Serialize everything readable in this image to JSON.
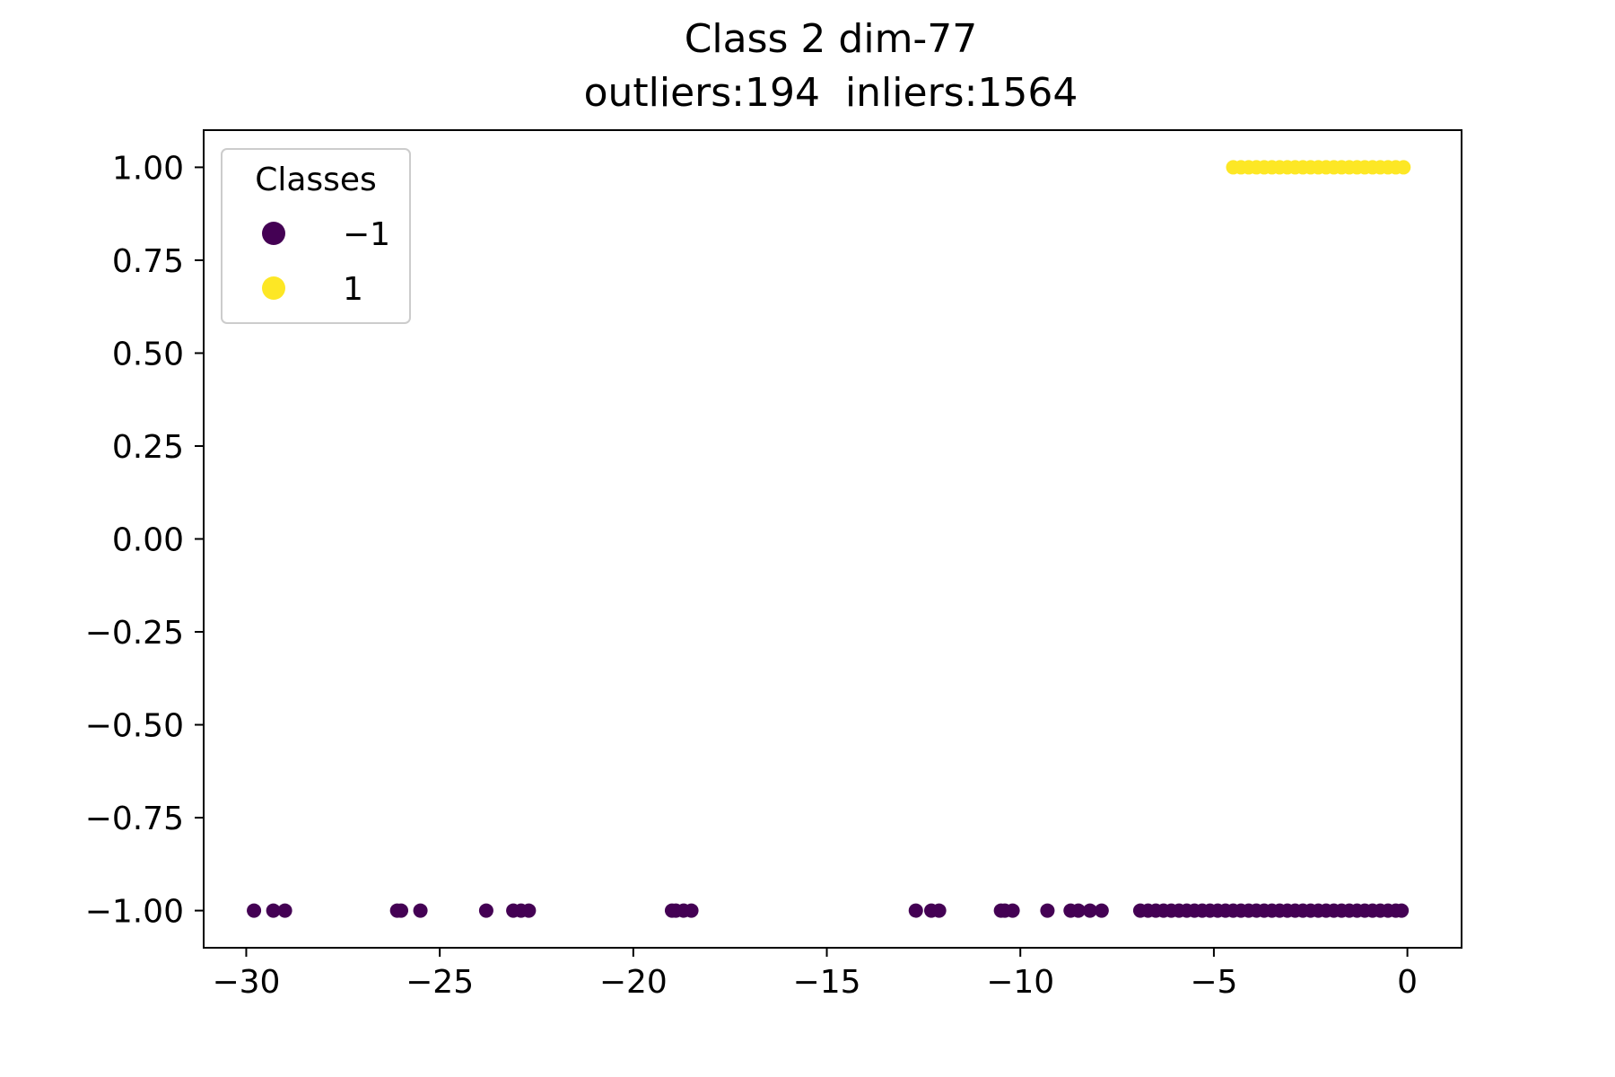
{
  "chart_data": {
    "type": "scatter",
    "title": "Class 2 dim-77",
    "subtitle": "outliers:194  inliers:1564",
    "xlabel": "",
    "ylabel": "",
    "xlim": [
      -31.1,
      1.4
    ],
    "ylim": [
      -1.1,
      1.1
    ],
    "xticks": [
      -30,
      -25,
      -20,
      -15,
      -10,
      -5,
      0
    ],
    "xtick_labels": [
      "−30",
      "−25",
      "−20",
      "−15",
      "−10",
      "−5",
      "0"
    ],
    "yticks": [
      1.0,
      0.75,
      0.5,
      0.25,
      0.0,
      -0.25,
      -0.5,
      -0.75,
      -1.0
    ],
    "ytick_labels": [
      "1.00",
      "0.75",
      "0.50",
      "0.25",
      "0.00",
      "−0.25",
      "−0.50",
      "−0.75",
      "−1.00"
    ],
    "grid": false,
    "legend": {
      "title": "Classes",
      "position": "top-left",
      "entries": [
        {
          "label": "−1",
          "color": "#440154"
        },
        {
          "label": "1",
          "color": "#fde725"
        }
      ]
    },
    "series": [
      {
        "name": "−1",
        "color": "#440154",
        "y": -1.0,
        "x": [
          -29.8,
          -29.3,
          -29.0,
          -26.1,
          -26.0,
          -25.5,
          -23.8,
          -23.1,
          -22.9,
          -22.7,
          -19.0,
          -18.9,
          -18.7,
          -18.5,
          -12.7,
          -12.3,
          -12.1,
          -10.5,
          -10.4,
          -10.2,
          -9.3,
          -8.7,
          -8.5,
          -8.2,
          -7.9,
          -6.9,
          -6.7,
          -6.5,
          -6.3,
          -6.1,
          -5.9,
          -5.7,
          -5.5,
          -5.3,
          -5.1,
          -4.9,
          -4.7,
          -4.5,
          -4.3,
          -4.1,
          -3.9,
          -3.7,
          -3.5,
          -3.3,
          -3.1,
          -2.9,
          -2.7,
          -2.5,
          -2.3,
          -2.1,
          -1.9,
          -1.7,
          -1.5,
          -1.3,
          -1.1,
          -0.9,
          -0.7,
          -0.5,
          -0.3,
          -0.15
        ]
      },
      {
        "name": "1",
        "color": "#fde725",
        "y": 1.0,
        "x": [
          -4.5,
          -4.3,
          -4.1,
          -3.9,
          -3.7,
          -3.5,
          -3.3,
          -3.1,
          -2.9,
          -2.7,
          -2.5,
          -2.3,
          -2.1,
          -1.9,
          -1.7,
          -1.5,
          -1.3,
          -1.1,
          -0.9,
          -0.7,
          -0.5,
          -0.3,
          -0.1
        ]
      }
    ]
  }
}
